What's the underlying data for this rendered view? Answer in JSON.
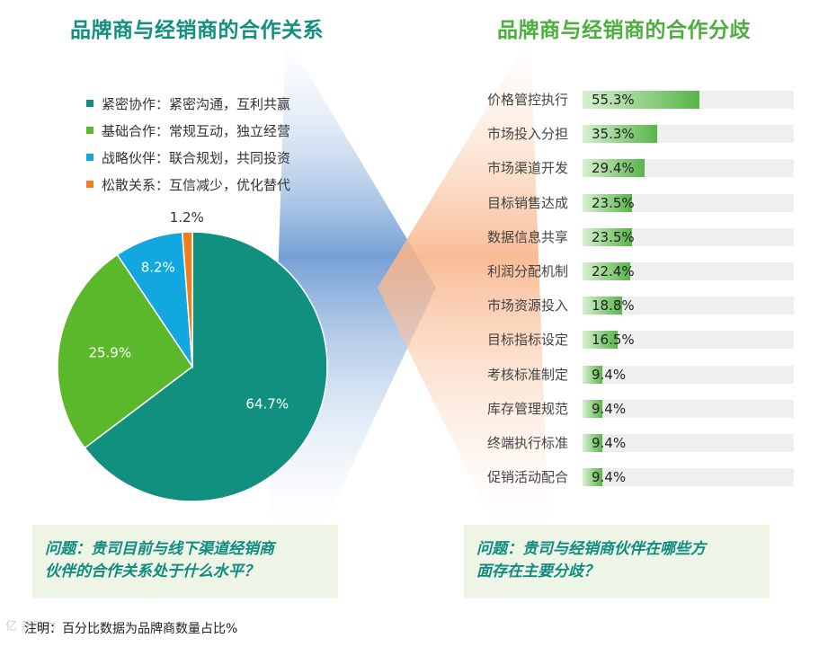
{
  "left_panel": {
    "title": "品牌商与经销商的合作关系",
    "question_line1": "问题：贵司目前与线下渠道经销商",
    "question_line2": "伙伴的合作关系处于什么水平？"
  },
  "right_panel": {
    "title": "品牌商与经销商的合作分歧",
    "question_line1": "问题：贵司与经销商伙伴在哪些方",
    "question_line2": "面存在主要分歧？"
  },
  "note": "注明：百分比数据为品牌商数量占比%",
  "corner_mark": "亿  邦动力",
  "colors": {
    "title_left": "#11907f",
    "title_right": "#4cae3c",
    "pie": [
      "#11907f",
      "#5cb82b",
      "#13a7e0",
      "#f07f1d"
    ]
  },
  "chart_data": [
    {
      "type": "pie",
      "title": "品牌商与经销商的合作关系",
      "unit": "%",
      "start": "top, clockwise",
      "slices": [
        {
          "name": "紧密协作",
          "legend": "紧密协作：紧密沟通，互利共赢",
          "value": 64.7,
          "label": "64.7%"
        },
        {
          "name": "基础合作",
          "legend": "基础合作：常规互动，独立经营",
          "value": 25.9,
          "label": "25.9%"
        },
        {
          "name": "战略伙伴",
          "legend": "战略伙伴：联合规划，共同投资",
          "value": 8.2,
          "label": "8.2%"
        },
        {
          "name": "松散关系",
          "legend": "松散关系：互信减少，优化替代",
          "value": 1.2,
          "label": "1.2%"
        }
      ]
    },
    {
      "type": "bar",
      "orientation": "horizontal",
      "title": "品牌商与经销商的合作分歧",
      "unit": "%",
      "xlim": [
        0,
        100
      ],
      "categories": [
        "价格管控执行",
        "市场投入分担",
        "市场渠道开发",
        "目标销售达成",
        "数据信息共享",
        "利润分配机制",
        "市场资源投入",
        "目标指标设定",
        "考核标准制定",
        "库存管理规范",
        "终端执行标准",
        "促销活动配合"
      ],
      "values": [
        55.3,
        35.3,
        29.4,
        23.5,
        23.5,
        22.4,
        18.8,
        16.5,
        9.4,
        9.4,
        9.4,
        9.4
      ],
      "labels": [
        "55.3%",
        "35.3%",
        "29.4%",
        "23.5%",
        "23.5%",
        "22.4%",
        "18.8%",
        "16.5%",
        "9.4%",
        "9.4%",
        "9.4%",
        "9.4%"
      ]
    }
  ]
}
